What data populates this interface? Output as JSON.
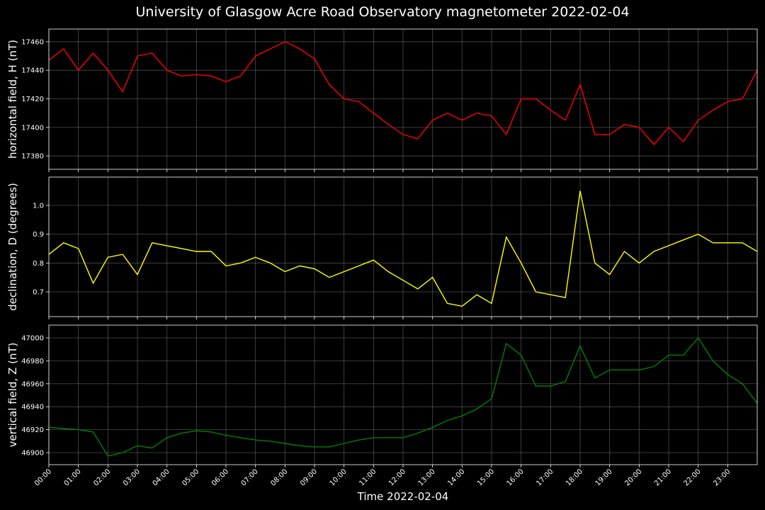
{
  "title": "University of Glasgow Acre Road Observatory magnetometer 2022-02-04",
  "xlabel": "Time 2022-02-04",
  "xlim": [
    0,
    24
  ],
  "xticks": [
    {
      "value": 0,
      "label": "00:00"
    },
    {
      "value": 1,
      "label": "01:00"
    },
    {
      "value": 2,
      "label": "02:00"
    },
    {
      "value": 3,
      "label": "03:00"
    },
    {
      "value": 4,
      "label": "04:00"
    },
    {
      "value": 5,
      "label": "05:00"
    },
    {
      "value": 6,
      "label": "06:00"
    },
    {
      "value": 7,
      "label": "07:00"
    },
    {
      "value": 8,
      "label": "08:00"
    },
    {
      "value": 9,
      "label": "09:00"
    },
    {
      "value": 10,
      "label": "10:00"
    },
    {
      "value": 11,
      "label": "11:00"
    },
    {
      "value": 12,
      "label": "12:00"
    },
    {
      "value": 13,
      "label": "13:00"
    },
    {
      "value": 14,
      "label": "14:00"
    },
    {
      "value": 15,
      "label": "15:00"
    },
    {
      "value": 16,
      "label": "16:00"
    },
    {
      "value": 17,
      "label": "17:00"
    },
    {
      "value": 18,
      "label": "18:00"
    },
    {
      "value": 19,
      "label": "19:00"
    },
    {
      "value": 20,
      "label": "20:00"
    },
    {
      "value": 21,
      "label": "21:00"
    },
    {
      "value": 22,
      "label": "22:00"
    },
    {
      "value": 23,
      "label": "23:00"
    }
  ],
  "chart_data": [
    {
      "type": "line",
      "ylabel": "horizontal field, H (nT)",
      "grid": true,
      "ylim": [
        17370.6,
        17468.9
      ],
      "yticks": [
        17380,
        17400,
        17420,
        17440,
        17460
      ],
      "x": [
        0,
        0.5,
        1,
        1.5,
        2,
        2.5,
        3,
        3.5,
        4,
        4.5,
        5,
        5.5,
        6,
        6.5,
        7,
        7.5,
        8,
        8.5,
        9,
        9.5,
        10,
        10.5,
        11,
        11.5,
        12,
        12.5,
        13,
        13.5,
        14,
        14.5,
        15,
        15.5,
        16,
        16.5,
        17,
        17.5,
        18,
        18.5,
        19,
        19.5,
        20,
        20.5,
        21,
        21.5,
        22,
        22.5,
        23,
        23.5,
        24
      ],
      "series": [
        {
          "color": "#ff0000",
          "values": [
            17447,
            17455,
            17440,
            17452,
            17440,
            17425,
            17450,
            17452,
            17440,
            17436,
            17437,
            17436,
            17432,
            17436,
            17450,
            17455,
            17460,
            17455,
            17448,
            17430,
            17420,
            17418,
            17410,
            17402,
            17395,
            17392,
            17405,
            17410,
            17405,
            17410,
            17408,
            17395,
            17420,
            17420,
            17412,
            17405,
            17430,
            17395,
            17395,
            17402,
            17400,
            17388,
            17400,
            17390,
            17405,
            17412,
            17418,
            17420,
            17440
          ]
        }
      ]
    },
    {
      "type": "line",
      "ylabel": "declination, D (degrees)",
      "grid": true,
      "ylim": [
        0.614,
        1.098
      ],
      "yticks": [
        0.7,
        0.8,
        0.9,
        {
          "value": 1,
          "label": "1.0"
        }
      ],
      "x": [
        0,
        0.5,
        1,
        1.5,
        2,
        2.5,
        3,
        3.5,
        4,
        4.5,
        5,
        5.5,
        6,
        6.5,
        7,
        7.5,
        8,
        8.5,
        9,
        9.5,
        10,
        10.5,
        11,
        11.5,
        12,
        12.5,
        13,
        13.5,
        14,
        14.5,
        15,
        15.5,
        16,
        16.5,
        17,
        17.5,
        18,
        18.5,
        19,
        19.5,
        20,
        20.5,
        21,
        21.5,
        22,
        22.5,
        23,
        23.5,
        24
      ],
      "series": [
        {
          "color": "#ffff00",
          "values": [
            0.83,
            0.87,
            0.85,
            0.73,
            0.82,
            0.83,
            0.76,
            0.87,
            0.86,
            0.85,
            0.84,
            0.84,
            0.79,
            0.8,
            0.82,
            0.8,
            0.77,
            0.79,
            0.78,
            0.75,
            0.77,
            0.79,
            0.81,
            0.77,
            0.74,
            0.71,
            0.75,
            0.66,
            0.65,
            0.69,
            0.66,
            0.89,
            0.8,
            0.7,
            0.69,
            0.68,
            1.05,
            0.8,
            0.76,
            0.84,
            0.8,
            0.84,
            0.86,
            0.88,
            0.9,
            0.87,
            0.87,
            0.87,
            0.84
          ]
        }
      ]
    },
    {
      "type": "line",
      "ylabel": "vertical field, Z (nT)",
      "grid": true,
      "ylim": [
        46889.5,
        47011.1
      ],
      "yticks": [
        46900,
        46920,
        46940,
        46960,
        46980,
        47000
      ],
      "x": [
        0,
        0.5,
        1,
        1.5,
        2,
        2.5,
        3,
        3.5,
        4,
        4.5,
        5,
        5.5,
        6,
        6.5,
        7,
        7.5,
        8,
        8.5,
        9,
        9.5,
        10,
        10.5,
        11,
        11.5,
        12,
        12.5,
        13,
        13.5,
        14,
        14.5,
        15,
        15.5,
        16,
        16.5,
        17,
        17.5,
        18,
        18.5,
        19,
        19.5,
        20,
        20.5,
        21,
        21.5,
        22,
        22.5,
        23,
        23.5,
        24
      ],
      "series": [
        {
          "color": "#008000",
          "values": [
            46922,
            46921,
            46920,
            46918,
            46897,
            46900,
            46906,
            46904,
            46913,
            46917,
            46919,
            46918,
            46915,
            46913,
            46911,
            46910,
            46908,
            46906,
            46905,
            46905,
            46908,
            46911,
            46913,
            46913,
            46913,
            46917,
            46922,
            46928,
            46932,
            46938,
            46947,
            46995,
            46985,
            46958,
            46958,
            46962,
            46993,
            46965,
            46972,
            46972,
            46972,
            46975,
            46985,
            46985,
            47000,
            46980,
            46968,
            46960,
            46943
          ]
        }
      ]
    }
  ]
}
